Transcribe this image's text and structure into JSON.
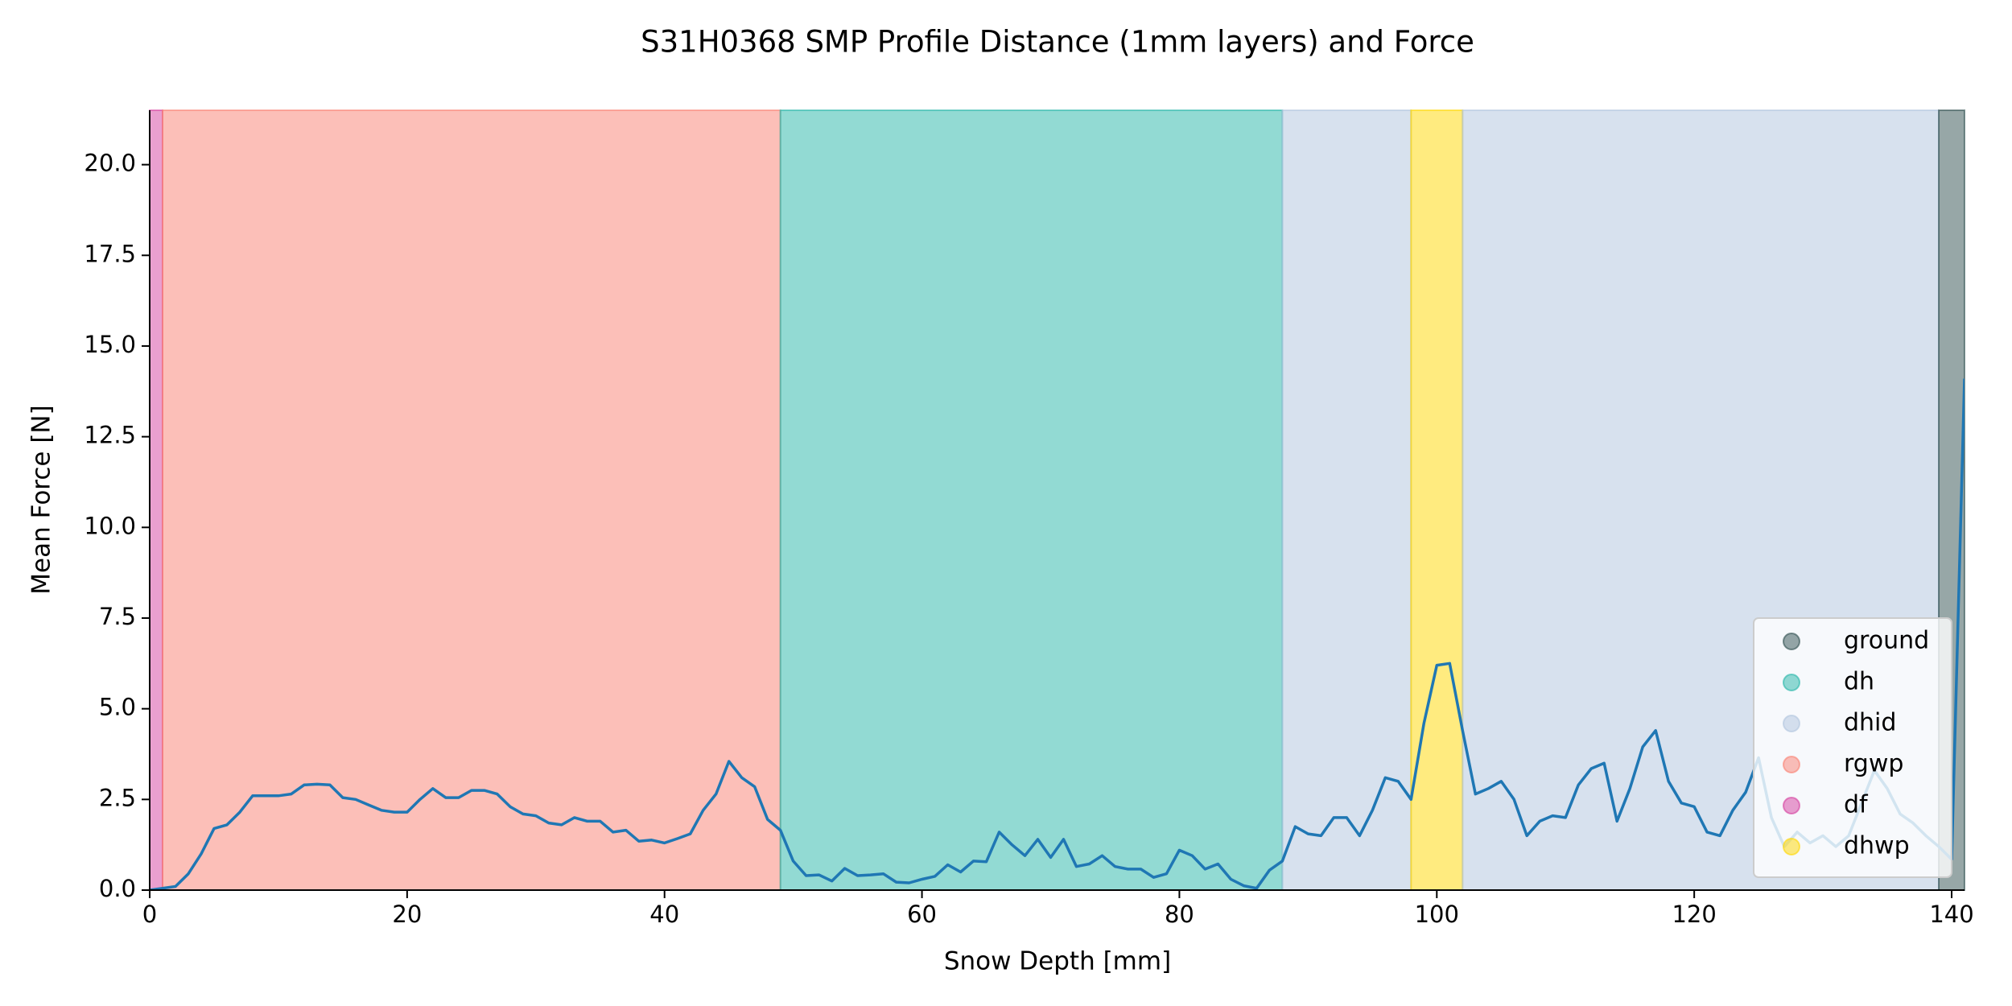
{
  "chart_data": {
    "type": "line",
    "title": "S31H0368 SMP Profile Distance (1mm layers) and Force",
    "xlabel": "Snow Depth [mm]",
    "ylabel": "Mean Force [N]",
    "x": [
      0,
      1,
      2,
      3,
      4,
      5,
      6,
      7,
      8,
      9,
      10,
      11,
      12,
      13,
      14,
      15,
      16,
      17,
      18,
      19,
      20,
      21,
      22,
      23,
      24,
      25,
      26,
      27,
      28,
      29,
      30,
      31,
      32,
      33,
      34,
      35,
      36,
      37,
      38,
      39,
      40,
      41,
      42,
      43,
      44,
      45,
      46,
      47,
      48,
      49,
      50,
      51,
      52,
      53,
      54,
      55,
      56,
      57,
      58,
      59,
      60,
      61,
      62,
      63,
      64,
      65,
      66,
      67,
      68,
      69,
      70,
      71,
      72,
      73,
      74,
      75,
      76,
      77,
      78,
      79,
      80,
      81,
      82,
      83,
      84,
      85,
      86,
      87,
      88,
      89,
      90,
      91,
      92,
      93,
      94,
      95,
      96,
      97,
      98,
      99,
      100,
      101,
      102,
      103,
      104,
      105,
      106,
      107,
      108,
      109,
      110,
      111,
      112,
      113,
      114,
      115,
      116,
      117,
      118,
      119,
      120,
      121,
      122,
      123,
      124,
      125,
      126,
      127,
      128,
      129,
      130,
      131,
      132,
      133,
      134,
      135,
      136,
      137,
      138,
      139,
      140,
      141
    ],
    "values": [
      0,
      0.05,
      0.1,
      0.45,
      1.0,
      1.7,
      1.8,
      2.15,
      2.6,
      2.6,
      2.6,
      2.65,
      2.9,
      2.92,
      2.9,
      2.55,
      2.5,
      2.35,
      2.2,
      2.15,
      2.15,
      2.5,
      2.8,
      2.55,
      2.55,
      2.75,
      2.75,
      2.65,
      2.3,
      2.1,
      2.05,
      1.85,
      1.8,
      2.0,
      1.9,
      1.9,
      1.6,
      1.65,
      1.35,
      1.38,
      1.3,
      1.42,
      1.55,
      2.2,
      2.65,
      3.55,
      3.1,
      2.85,
      1.95,
      1.65,
      0.8,
      0.4,
      0.42,
      0.25,
      0.6,
      0.4,
      0.42,
      0.45,
      0.22,
      0.2,
      0.3,
      0.38,
      0.7,
      0.5,
      0.8,
      0.78,
      1.6,
      1.25,
      0.95,
      1.4,
      0.9,
      1.4,
      0.65,
      0.72,
      0.95,
      0.65,
      0.58,
      0.58,
      0.35,
      0.45,
      1.1,
      0.95,
      0.58,
      0.72,
      0.3,
      0.12,
      0.05,
      0.55,
      0.8,
      1.75,
      1.55,
      1.5,
      2.0,
      2.0,
      1.5,
      2.2,
      3.1,
      3.0,
      2.5,
      4.6,
      6.2,
      6.25,
      4.4,
      2.65,
      2.8,
      3.0,
      2.5,
      1.5,
      1.9,
      2.05,
      2.0,
      2.9,
      3.35,
      3.5,
      1.9,
      2.8,
      3.95,
      4.4,
      3.0,
      2.4,
      2.3,
      1.6,
      1.5,
      2.2,
      2.7,
      3.65,
      2.0,
      1.2,
      1.6,
      1.3,
      1.5,
      1.2,
      1.5,
      2.4,
      3.3,
      2.8,
      2.1,
      1.85,
      1.5,
      1.2,
      0.85,
      14.1
    ],
    "line_color": "#1f77b4",
    "layers": [
      {
        "start": 0,
        "end": 1,
        "color": "#d6409f"
      },
      {
        "start": 1,
        "end": 49,
        "color": "#fa8072"
      },
      {
        "start": 49,
        "end": 88,
        "color": "#26b5a8"
      },
      {
        "start": 88,
        "end": 98,
        "color": "#b0c4de"
      },
      {
        "start": 98,
        "end": 102,
        "color": "#ffd700"
      },
      {
        "start": 102,
        "end": 139,
        "color": "#b0c4de"
      },
      {
        "start": 139,
        "end": 141,
        "color": "#2f4f4f"
      }
    ],
    "legend_items": [
      {
        "name": "ground",
        "color": "#2f4f4f"
      },
      {
        "name": "dh",
        "color": "#26b5a8"
      },
      {
        "name": "dhid",
        "color": "#b0c4de"
      },
      {
        "name": "rgwp",
        "color": "#fa8072"
      },
      {
        "name": "df",
        "color": "#d6409f"
      },
      {
        "name": "dhwp",
        "color": "#ffd700"
      }
    ],
    "legend_position": "lower right",
    "xlim": [
      0,
      141
    ],
    "ylim": [
      0,
      21.5
    ],
    "xticks": [
      0,
      20,
      40,
      60,
      80,
      100,
      120,
      140
    ],
    "yticks": [
      {
        "value": 0,
        "label": "0.0"
      },
      {
        "value": 2.5,
        "label": "2.5"
      },
      {
        "value": 5,
        "label": "5.0"
      },
      {
        "value": 7.5,
        "label": "7.5"
      },
      {
        "value": 10,
        "label": "10.0"
      },
      {
        "value": 12.5,
        "label": "12.5"
      },
      {
        "value": 15,
        "label": "15.0"
      },
      {
        "value": 17.5,
        "label": "17.5"
      },
      {
        "value": 20,
        "label": "20.0"
      }
    ]
  }
}
